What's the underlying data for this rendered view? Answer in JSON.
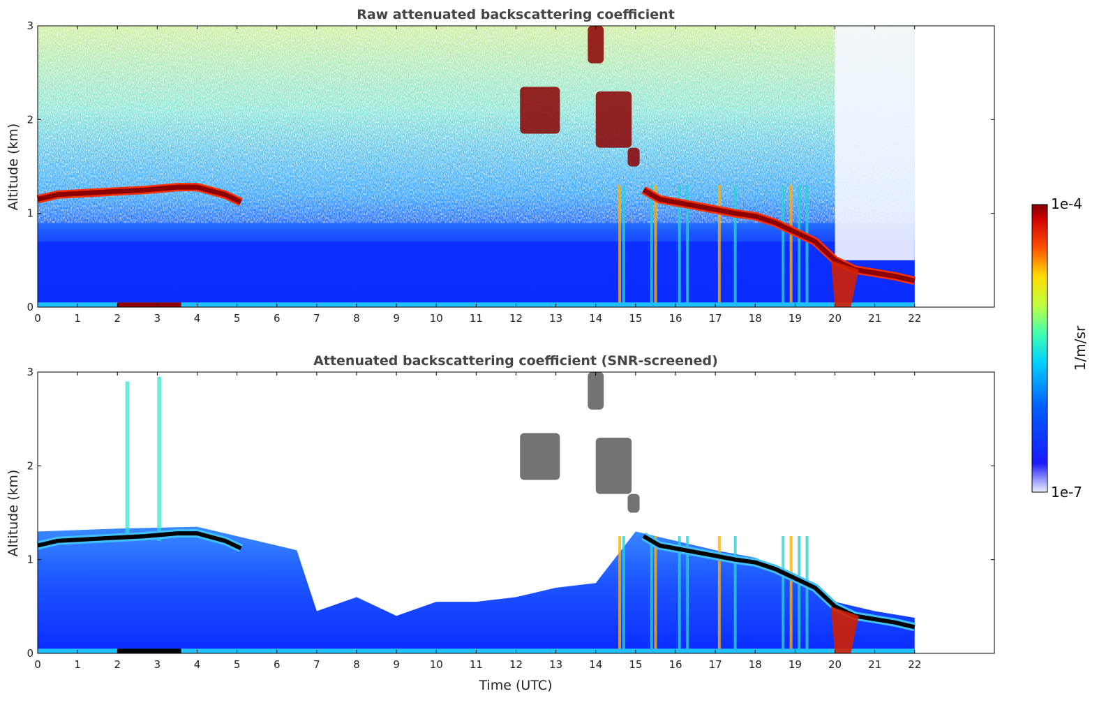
{
  "chart_data": [
    {
      "type": "heatmap",
      "title": "Raw attenuated backscattering coefficient",
      "ylabel": "Altitude (km)",
      "xlabel": "",
      "xlim": [
        0,
        24
      ],
      "ylim": [
        0,
        3
      ],
      "x_ticks": [
        "0",
        "1",
        "2",
        "3",
        "4",
        "5",
        "6",
        "7",
        "8",
        "9",
        "10",
        "11",
        "12",
        "13",
        "14",
        "15",
        "16",
        "17",
        "18",
        "19",
        "20",
        "21",
        "22"
      ],
      "y_ticks": [
        "0",
        "1",
        "2",
        "3"
      ],
      "data_end_time": 22,
      "boundary_layer_top_km": [
        [
          0,
          1.15
        ],
        [
          0.5,
          1.2
        ],
        [
          2.7,
          1.25
        ],
        [
          3.5,
          1.28
        ],
        [
          4.0,
          1.28
        ],
        [
          4.7,
          1.2
        ],
        [
          5.1,
          1.12
        ],
        [
          15.2,
          1.25
        ],
        [
          15.6,
          1.15
        ],
        [
          16.5,
          1.08
        ],
        [
          17.5,
          1.0
        ],
        [
          18.0,
          0.97
        ],
        [
          18.5,
          0.9
        ],
        [
          19.0,
          0.8
        ],
        [
          19.5,
          0.7
        ],
        [
          20.0,
          0.5
        ],
        [
          20.5,
          0.4
        ],
        [
          21.5,
          0.33
        ],
        [
          22.0,
          0.28
        ]
      ],
      "cloud_features": [
        {
          "t_start": 12.1,
          "t_end": 13.1,
          "alt_low": 1.85,
          "alt_high": 2.35
        },
        {
          "t_start": 13.8,
          "t_end": 14.2,
          "alt_low": 2.6,
          "alt_high": 3.0
        },
        {
          "t_start": 14.0,
          "t_end": 14.9,
          "alt_low": 1.7,
          "alt_high": 2.3
        },
        {
          "t_start": 14.8,
          "t_end": 15.1,
          "alt_low": 1.5,
          "alt_high": 1.7
        }
      ],
      "precipitation_streaks_time": [
        14.6,
        14.7,
        15.4,
        15.5,
        16.1,
        16.3,
        17.1,
        17.5,
        18.7,
        18.9,
        19.1,
        19.3
      ]
    },
    {
      "type": "heatmap",
      "title": "Attenuated backscattering coefficient (SNR-screened)",
      "ylabel": "Altitude (km)",
      "xlabel": "Time (UTC)",
      "xlim": [
        0,
        24
      ],
      "ylim": [
        0,
        3
      ],
      "x_ticks": [
        "0",
        "1",
        "2",
        "3",
        "4",
        "5",
        "6",
        "7",
        "8",
        "9",
        "10",
        "11",
        "12",
        "13",
        "14",
        "15",
        "16",
        "17",
        "18",
        "19",
        "20",
        "21",
        "22"
      ],
      "y_ticks": [
        "0",
        "1",
        "2",
        "3"
      ],
      "data_end_time": 22,
      "screened_signal_top_km": [
        [
          0,
          1.3
        ],
        [
          2.0,
          1.33
        ],
        [
          4.0,
          1.35
        ],
        [
          5.0,
          1.25
        ],
        [
          5.5,
          1.2
        ],
        [
          6.5,
          1.1
        ],
        [
          7.0,
          0.45
        ],
        [
          8.0,
          0.6
        ],
        [
          9.0,
          0.4
        ],
        [
          10.0,
          0.55
        ],
        [
          11.0,
          0.55
        ],
        [
          12.0,
          0.6
        ],
        [
          13.0,
          0.7
        ],
        [
          14.0,
          0.75
        ],
        [
          15.0,
          1.3
        ],
        [
          16.0,
          1.2
        ],
        [
          17.0,
          1.1
        ],
        [
          18.0,
          1.02
        ],
        [
          19.0,
          0.85
        ],
        [
          20.0,
          0.55
        ],
        [
          21.0,
          0.45
        ],
        [
          22.0,
          0.38
        ]
      ]
    }
  ],
  "colorbar": {
    "label": "1/m/sr",
    "max_label": "1e-4",
    "min_label": "1e-7",
    "colormap": "jet"
  },
  "colors": {
    "low": "#0a2bff",
    "mid": "#3fb6ff",
    "high_noise": "#d8f070",
    "layer": "#8b0000",
    "layer_edge": "#ff3000",
    "screened_edge": "#000000"
  }
}
